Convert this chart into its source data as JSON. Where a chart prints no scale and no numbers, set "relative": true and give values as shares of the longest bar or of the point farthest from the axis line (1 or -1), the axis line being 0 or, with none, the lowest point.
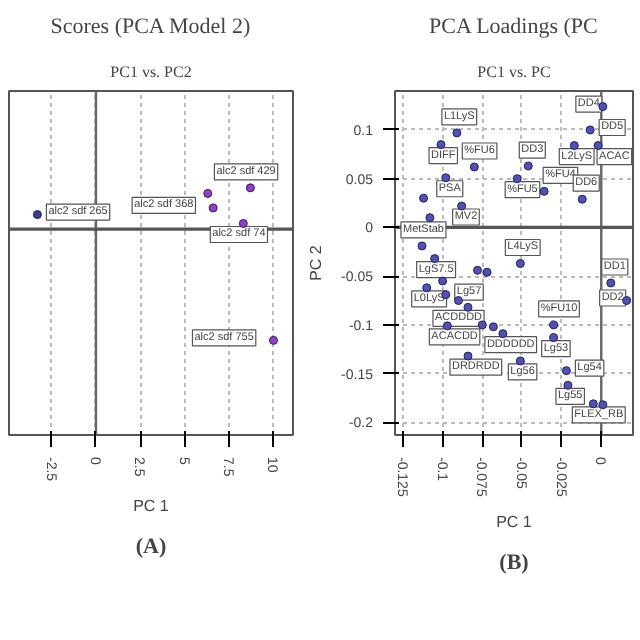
{
  "chart_data": [
    {
      "type": "scatter",
      "title": "Scores (PCA Model 2)",
      "subtitle": "PC1 vs. PC2",
      "xlabel": "PC 1",
      "relative": true,
      "marker": "circle",
      "grid": true,
      "tick_labels": "x",
      "x": [
        -3.3,
        6.3,
        6.6,
        8.7,
        8.3,
        10.0
      ],
      "values": [
        0.13,
        0.32,
        0.19,
        0.37,
        0.05,
        -1
      ],
      "colors": [
        "#3a3a9a",
        "#9a3acc",
        "#9a3acc",
        "#9a3acc",
        "#9a3acc",
        "#9a3acc"
      ],
      "xlim": [
        -4.9,
        11.1
      ],
      "xticks": [
        -2.5,
        0,
        2.5,
        5,
        7.5,
        10
      ],
      "ref_lines": [
        {
          "axis": "x",
          "value": 0
        },
        {
          "axis": "y",
          "value": 0
        }
      ],
      "annotations": [
        {
          "text": "alc2 sdf 265",
          "x": -3.3,
          "y": 0.13
        },
        {
          "text": "alc2 sdf 429",
          "x": 8.7,
          "y": 0.37
        },
        {
          "text": "alc2 sdf 368",
          "x": 6.6,
          "y": 0.19
        },
        {
          "text": "alc2 sdf 74",
          "x": 8.3,
          "y": 0.05
        },
        {
          "text": "alc2 sdf 755",
          "x": 10.0,
          "y": -1
        },
        "(A)"
      ]
    },
    {
      "type": "scatter",
      "title": "PCA Loadings (PC",
      "subtitle": "PC1 vs. PC",
      "xlabel": "PC 1",
      "ylabel": "PC 2",
      "marker": "circle",
      "grid": true,
      "color": "#5050b8",
      "x": [
        0.001,
        -0.007,
        -0.091,
        -0.101,
        -0.017,
        -0.002,
        -0.08,
        -0.046,
        -0.053,
        -0.036,
        -0.012,
        -0.098,
        -0.088,
        -0.113,
        -0.105,
        -0.051,
        -0.11,
        -0.098,
        0.006,
        0.016,
        -0.084,
        -0.097,
        -0.062,
        -0.03,
        -0.03,
        -0.084,
        -0.051,
        -0.022,
        -0.021,
        -0.005,
        0.001,
        -0.112,
        -0.108,
        -0.1,
        -0.078,
        -0.072,
        -0.09,
        -0.075,
        -0.068
      ],
      "values": [
        0.124,
        0.1,
        0.097,
        0.085,
        0.084,
        0.084,
        0.062,
        0.063,
        0.05,
        0.037,
        0.029,
        0.051,
        0.022,
        -0.019,
        -0.032,
        -0.037,
        -0.062,
        -0.069,
        -0.057,
        -0.075,
        -0.082,
        -0.101,
        -0.109,
        -0.1,
        -0.113,
        -0.132,
        -0.137,
        -0.147,
        -0.162,
        -0.181,
        -0.182,
        0.03,
        0.01,
        -0.055,
        -0.044,
        -0.046,
        -0.075,
        -0.1,
        -0.102
      ],
      "xlim": [
        -0.13,
        0.02
      ],
      "xticks": [
        -0.125,
        -0.1,
        -0.075,
        -0.05,
        -0.025,
        0
      ],
      "ylim": [
        -0.213,
        0.14
      ],
      "yticks": [
        -0.2,
        -0.15,
        -0.1,
        -0.05,
        0,
        0.05,
        0.1
      ],
      "ref_lines": [
        {
          "axis": "x",
          "value": 0
        },
        {
          "axis": "y",
          "value": 0
        }
      ],
      "annotations": [
        {
          "text": "DD4",
          "x": 0.001,
          "y": 0.124
        },
        {
          "text": "DD5",
          "x": -0.007,
          "y": 0.1
        },
        {
          "text": "L1LyS",
          "x": -0.091,
          "y": 0.097
        },
        {
          "text": "DIFF",
          "x": -0.101,
          "y": 0.085
        },
        {
          "text": "L2LyS",
          "x": -0.017,
          "y": 0.084
        },
        {
          "text": "ACAC",
          "x": -0.002,
          "y": 0.084
        },
        {
          "text": "%FU6",
          "x": -0.08,
          "y": 0.062
        },
        {
          "text": "DD3",
          "x": -0.046,
          "y": 0.063
        },
        {
          "text": "%FU5",
          "x": -0.053,
          "y": 0.05
        },
        {
          "text": "%FU4",
          "x": -0.036,
          "y": 0.037
        },
        {
          "text": "DD6",
          "x": -0.012,
          "y": 0.029
        },
        {
          "text": "PSA",
          "x": -0.098,
          "y": 0.051
        },
        {
          "text": "MV2",
          "x": -0.088,
          "y": 0.022
        },
        {
          "text": "MetStab",
          "x": -0.113,
          "y": -0.019
        },
        {
          "text": "LgS7.5",
          "x": -0.105,
          "y": -0.032
        },
        {
          "text": "L4LyS",
          "x": -0.051,
          "y": -0.037
        },
        {
          "text": "L0LyS",
          "x": -0.11,
          "y": -0.062
        },
        {
          "text": "Lg57",
          "x": -0.098,
          "y": -0.069
        },
        {
          "text": "DD1",
          "x": 0.006,
          "y": -0.057
        },
        {
          "text": "DD2",
          "x": 0.016,
          "y": -0.075
        },
        {
          "text": "ACDDDD",
          "x": -0.084,
          "y": -0.082
        },
        {
          "text": "ACACDD",
          "x": -0.097,
          "y": -0.101
        },
        {
          "text": "DDDDDD",
          "x": -0.062,
          "y": -0.109
        },
        {
          "text": "%FU10",
          "x": -0.03,
          "y": -0.1
        },
        {
          "text": "Lg53",
          "x": -0.03,
          "y": -0.113
        },
        {
          "text": "DRDRDD",
          "x": -0.084,
          "y": -0.132
        },
        {
          "text": "Lg56",
          "x": -0.051,
          "y": -0.137
        },
        {
          "text": "Lg54",
          "x": -0.022,
          "y": -0.147
        },
        {
          "text": "Lg55",
          "x": -0.021,
          "y": -0.162
        },
        {
          "text": "FLEX_RB",
          "x": -0.005,
          "y": -0.181
        },
        "(B)"
      ]
    }
  ]
}
